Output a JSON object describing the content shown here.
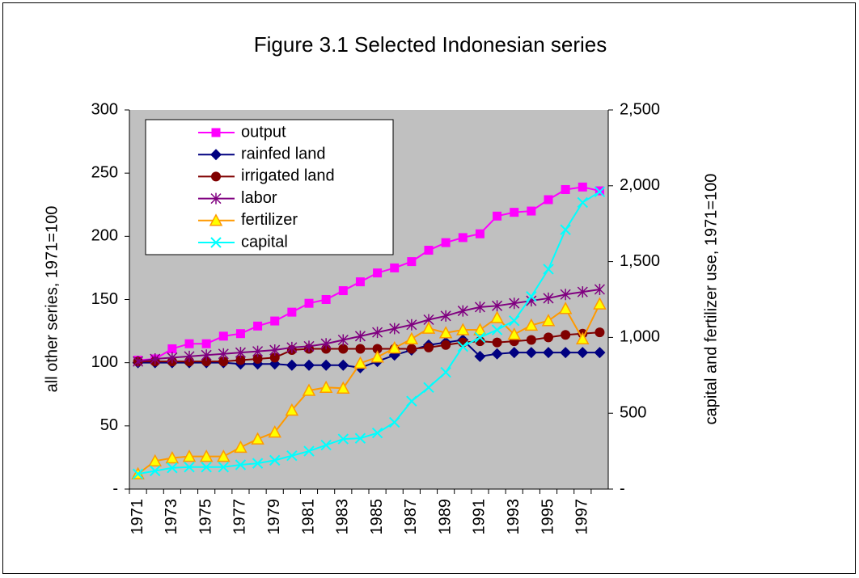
{
  "chart_data": {
    "type": "line",
    "title": "Figure 3.1 Selected Indonesian series",
    "ylabel": "all other series, 1971=100",
    "y2label": "capital and fertilizer use, 1971=100",
    "categories": [
      "1971",
      null,
      "1973",
      null,
      "1975",
      null,
      "1977",
      null,
      "1979",
      null,
      "1981",
      null,
      "1983",
      null,
      "1985",
      null,
      "1987",
      null,
      "1989",
      null,
      "1991",
      null,
      "1993",
      null,
      "1995",
      null,
      "1997",
      null
    ],
    "ylim": [
      0,
      300
    ],
    "yticks": [
      {
        "value": 0,
        "label": "-"
      },
      50,
      100,
      150,
      200,
      250,
      300
    ],
    "y2lim": [
      0,
      2500
    ],
    "y2ticks": [
      {
        "value": 0,
        "label": "-"
      },
      {
        "value": 500,
        "label": "500"
      },
      {
        "value": 1000,
        "label": "1,000"
      },
      {
        "value": 1500,
        "label": "1,500"
      },
      {
        "value": 2000,
        "label": "2,000"
      },
      {
        "value": 2500,
        "label": "2,500"
      }
    ],
    "background": "#c0c0c0",
    "legend": "top-left",
    "series": [
      {
        "name": "output",
        "color": "#ff00ff",
        "marker": "square",
        "marker_color": "#ff00ff",
        "values": [
          102,
          103,
          111,
          115,
          115,
          121,
          123,
          129,
          133,
          140,
          147,
          150,
          157,
          164,
          171,
          175,
          180,
          189,
          195,
          199,
          202,
          216,
          219,
          220,
          229,
          237,
          239,
          236
        ]
      },
      {
        "name": "rainfed land",
        "color": "#000080",
        "marker": "diamond",
        "marker_color": "#000080",
        "values": [
          100,
          100,
          100,
          100,
          100,
          100,
          99,
          99,
          99,
          98,
          98,
          98,
          98,
          96,
          101,
          106,
          110,
          114,
          116,
          118,
          105,
          107,
          108,
          108,
          108,
          108,
          108,
          108
        ]
      },
      {
        "name": "irrigated land",
        "color": "#800000",
        "marker": "circle",
        "marker_color": "#800000",
        "values": [
          101,
          101,
          101,
          101,
          101,
          101,
          102,
          103,
          104,
          110,
          111,
          111,
          111,
          111,
          111,
          111,
          111,
          112,
          114,
          116,
          117,
          116,
          117,
          118,
          120,
          122,
          123,
          124
        ]
      },
      {
        "name": "labor",
        "color": "#800080",
        "marker": "star",
        "marker_color": "#800080",
        "values": [
          101,
          103,
          104,
          105,
          106,
          107,
          108,
          109,
          110,
          112,
          113,
          115,
          118,
          121,
          124,
          127,
          130,
          134,
          137,
          141,
          144,
          145,
          147,
          149,
          151,
          154,
          156,
          158
        ]
      },
      {
        "name": "fertilizer",
        "color": "#ff9900",
        "marker": "triangle",
        "marker_color": "#ffff00",
        "axis": "y2",
        "values": [
          100,
          185,
          205,
          215,
          215,
          215,
          275,
          330,
          375,
          520,
          650,
          670,
          665,
          830,
          870,
          930,
          990,
          1060,
          1030,
          1050,
          1050,
          1130,
          1020,
          1080,
          1110,
          1190,
          990,
          1220
        ]
      },
      {
        "name": "capital",
        "color": "#00ffff",
        "marker": "x",
        "marker_color": "#00ffff",
        "axis": "y2",
        "values": [
          100,
          120,
          140,
          145,
          145,
          145,
          160,
          170,
          190,
          220,
          250,
          290,
          330,
          335,
          370,
          440,
          580,
          670,
          770,
          940,
          1000,
          1050,
          1110,
          1270,
          1450,
          1710,
          1890,
          1960
        ]
      }
    ]
  }
}
